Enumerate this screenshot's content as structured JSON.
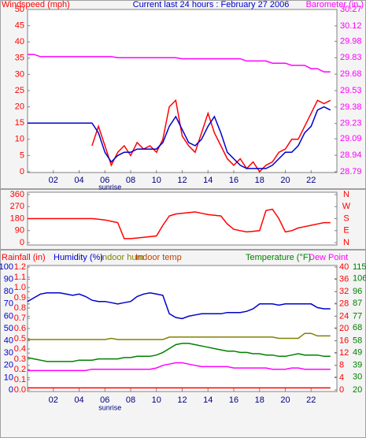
{
  "chart_data": [
    {
      "type": "line",
      "title": "Current last 24 hours : February 27 2006",
      "ylabel": "Windspeed (mph)",
      "y2label": "Barometer (in.)",
      "x": [
        0,
        0.5,
        1,
        1.5,
        2,
        2.5,
        3,
        3.5,
        4,
        4.5,
        5,
        5.5,
        6,
        6.5,
        7,
        7.5,
        8,
        8.5,
        9,
        9.5,
        10,
        10.5,
        11,
        11.5,
        12,
        12.5,
        13,
        13.5,
        14,
        14.5,
        15,
        15.5,
        16,
        16.5,
        17,
        17.5,
        18,
        18.5,
        19,
        19.5,
        20,
        20.5,
        21,
        21.5,
        22,
        22.5,
        23,
        23.5
      ],
      "xlim": [
        0,
        24
      ],
      "xticks": [
        {
          "value": 2,
          "label": "02"
        },
        {
          "value": 4,
          "label": "04"
        },
        {
          "value": 6,
          "label": "06"
        },
        {
          "value": 8,
          "label": "08"
        },
        {
          "value": 10,
          "label": "10"
        },
        {
          "value": 12,
          "label": "12"
        },
        {
          "value": 14,
          "label": "14"
        },
        {
          "value": 16,
          "label": "16"
        },
        {
          "value": 18,
          "label": "18"
        },
        {
          "value": 20,
          "label": "20"
        },
        {
          "value": 22,
          "label": "22"
        }
      ],
      "annotations": [
        {
          "text": "sunrise",
          "x": 6.4
        }
      ],
      "ylim": [
        0,
        50
      ],
      "yticks": [
        0,
        5,
        10,
        15,
        20,
        25,
        30,
        35,
        40,
        45,
        50
      ],
      "y2lim": [
        28.79,
        30.27
      ],
      "y2ticks": [
        28.79,
        28.94,
        29.09,
        29.23,
        29.38,
        29.53,
        29.68,
        29.83,
        29.98,
        30.12,
        30.27
      ],
      "series": [
        {
          "color": "#ff0000",
          "values": [
            null,
            null,
            null,
            null,
            null,
            null,
            null,
            null,
            null,
            null,
            8,
            14,
            8,
            2,
            6,
            8,
            5,
            9,
            7,
            8,
            6,
            10,
            20,
            22,
            11,
            8,
            6,
            12,
            18,
            12,
            8,
            4,
            2,
            4,
            1,
            3,
            0,
            2,
            3,
            6,
            7,
            10,
            10,
            14,
            18,
            22,
            21,
            22
          ]
        },
        {
          "color": "#0000cc",
          "values": [
            15,
            15,
            15,
            15,
            15,
            15,
            15,
            15,
            15,
            15,
            15,
            12,
            6,
            3,
            5,
            6,
            6,
            7,
            7,
            7,
            7,
            9,
            14,
            17,
            13,
            9,
            8,
            10,
            14,
            17,
            12,
            6,
            4,
            2,
            1,
            1,
            1,
            1,
            2,
            4,
            6,
            6,
            8,
            12,
            14,
            19,
            20,
            19
          ]
        },
        {
          "color": "#ff00ff",
          "axis": "y2",
          "values": [
            29.86,
            29.86,
            29.84,
            29.84,
            29.84,
            29.84,
            29.84,
            29.84,
            29.84,
            29.84,
            29.84,
            29.84,
            29.84,
            29.84,
            29.83,
            29.83,
            29.83,
            29.83,
            29.83,
            29.83,
            29.83,
            29.83,
            29.83,
            29.83,
            29.82,
            29.82,
            29.82,
            29.82,
            29.82,
            29.82,
            29.82,
            29.82,
            29.82,
            29.82,
            29.8,
            29.8,
            29.8,
            29.8,
            29.78,
            29.78,
            29.78,
            29.76,
            29.76,
            29.76,
            29.73,
            29.73,
            29.7,
            29.7
          ]
        }
      ]
    },
    {
      "type": "line",
      "x": [
        0,
        0.5,
        1,
        1.5,
        2,
        2.5,
        3,
        3.5,
        4,
        4.5,
        5,
        5.5,
        6,
        6.5,
        7,
        7.5,
        8,
        8.5,
        9,
        9.5,
        10,
        10.5,
        11,
        11.5,
        12,
        12.5,
        13,
        13.5,
        14,
        14.5,
        15,
        15.5,
        16,
        16.5,
        17,
        17.5,
        18,
        18.5,
        19,
        19.5,
        20,
        20.5,
        21,
        21.5,
        22,
        22.5,
        23,
        23.5
      ],
      "xlim": [
        0,
        24
      ],
      "ylim": [
        0,
        360
      ],
      "yticks": [
        0,
        90,
        180,
        270,
        360
      ],
      "y2lim": [
        0,
        360
      ],
      "y2ticks": [
        {
          "value": 360,
          "label": "N"
        },
        {
          "value": 270,
          "label": "W"
        },
        {
          "value": 180,
          "label": "S"
        },
        {
          "value": 90,
          "label": "E"
        },
        {
          "value": 0,
          "label": "N"
        }
      ],
      "series": [
        {
          "color": "#ff0000",
          "values": [
            180,
            180,
            180,
            180,
            180,
            180,
            180,
            180,
            180,
            180,
            180,
            175,
            170,
            160,
            150,
            30,
            30,
            35,
            40,
            45,
            50,
            130,
            200,
            215,
            220,
            225,
            230,
            220,
            210,
            205,
            200,
            140,
            100,
            90,
            80,
            85,
            90,
            240,
            250,
            180,
            80,
            90,
            110,
            120,
            130,
            140,
            150,
            150
          ]
        }
      ]
    },
    {
      "type": "line",
      "header": [
        {
          "text": "Rainfall (in)",
          "color": "#ff0000"
        },
        {
          "text": "Humidity (%)",
          "color": "#0000cc"
        },
        {
          "text": "Indoor hum",
          "color": "#808000"
        },
        {
          "text": "Indoor temp",
          "color": "#c04000"
        },
        {
          "text": "Temperature (°F)",
          "color": "#008000"
        },
        {
          "text": "Dew Point",
          "color": "#ff00ff"
        }
      ],
      "x": [
        0,
        0.5,
        1,
        1.5,
        2,
        2.5,
        3,
        3.5,
        4,
        4.5,
        5,
        5.5,
        6,
        6.5,
        7,
        7.5,
        8,
        8.5,
        9,
        9.5,
        10,
        10.5,
        11,
        11.5,
        12,
        12.5,
        13,
        13.5,
        14,
        14.5,
        15,
        15.5,
        16,
        16.5,
        17,
        17.5,
        18,
        18.5,
        19,
        19.5,
        20,
        20.5,
        21,
        21.5,
        22,
        22.5,
        23,
        23.5
      ],
      "xlim": [
        0,
        24
      ],
      "xticks": [
        {
          "value": 2,
          "label": "02"
        },
        {
          "value": 4,
          "label": "04"
        },
        {
          "value": 6,
          "label": "06"
        },
        {
          "value": 8,
          "label": "08"
        },
        {
          "value": 10,
          "label": "10"
        },
        {
          "value": 12,
          "label": "12"
        },
        {
          "value": 14,
          "label": "14"
        },
        {
          "value": 16,
          "label": "16"
        },
        {
          "value": 18,
          "label": "18"
        },
        {
          "value": 20,
          "label": "20"
        },
        {
          "value": 22,
          "label": "22"
        }
      ],
      "annotations": [
        {
          "text": "sunrise",
          "x": 6.4
        }
      ],
      "ylim": [
        0,
        100
      ],
      "yticks": [
        0,
        10,
        20,
        30,
        40,
        50,
        60,
        70,
        80,
        90,
        100
      ],
      "y2lim": [
        0,
        1.2
      ],
      "y2ticks": [
        {
          "value": 0,
          "label": "0.0"
        },
        0.1,
        0.2,
        0.3,
        0.4,
        0.5,
        0.6,
        0.7,
        0.8,
        0.9,
        {
          "value": 1,
          "label": "1.0"
        },
        1.1,
        1.2
      ],
      "y3lim": [
        0,
        40
      ],
      "y3ticks": [
        0,
        4,
        8,
        12,
        16,
        20,
        24,
        28,
        32,
        36,
        40
      ],
      "y4lim": [
        20,
        115
      ],
      "y4ticks": [
        20,
        30,
        39,
        49,
        58,
        68,
        77,
        87,
        96,
        106,
        115
      ],
      "series": [
        {
          "color": "#ff0000",
          "axis": "y2",
          "values": [
            0.02,
            0.02,
            0.02,
            0.02,
            0.02,
            0.02,
            0.02,
            0.02,
            0.02,
            0.02,
            0.02,
            0.02,
            0.02,
            0.02,
            0.02,
            0.02,
            0.02,
            0.02,
            0.02,
            0.02,
            0.02,
            0.02,
            0.02,
            0.02,
            0.02,
            0.02,
            0.02,
            0.02,
            0.02,
            0.02,
            0.02,
            0.02,
            0.02,
            0.02,
            0.02,
            0.02,
            0.02,
            0.02,
            0.02,
            0.02,
            0.02,
            0.02,
            0.02,
            0.02,
            0.02,
            0.02,
            0.02,
            0.02
          ]
        },
        {
          "color": "#808000",
          "values": [
            41,
            41,
            41,
            41,
            41,
            41,
            41,
            41,
            41,
            41,
            41,
            41,
            41,
            42,
            41,
            41,
            41,
            41,
            41,
            41,
            41,
            41,
            43,
            43,
            43,
            43,
            43,
            43,
            43,
            43,
            43,
            43,
            43,
            43,
            43,
            43,
            43,
            43,
            43,
            42,
            42,
            42,
            42,
            46,
            46,
            44,
            44,
            44
          ]
        },
        {
          "color": "#008000",
          "axis": "y4",
          "values": [
            45,
            44,
            43,
            42,
            42,
            42,
            42,
            42,
            43,
            43,
            43,
            44,
            44,
            44,
            44,
            45,
            45,
            46,
            46,
            46,
            47,
            49,
            52,
            55,
            56,
            56,
            55,
            54,
            53,
            52,
            51,
            50,
            50,
            49,
            49,
            48,
            48,
            47,
            47,
            46,
            46,
            47,
            48,
            47,
            47,
            47,
            46,
            46
          ]
        },
        {
          "color": "#ff00ff",
          "axis": "y4",
          "values": [
            35,
            35,
            35,
            35,
            35,
            35,
            35,
            35,
            35,
            35,
            36,
            36,
            36,
            36,
            36,
            36,
            36,
            36,
            36,
            36,
            37,
            39,
            40,
            41,
            41,
            40,
            39,
            38,
            38,
            38,
            38,
            38,
            37,
            37,
            37,
            37,
            37,
            37,
            36,
            36,
            36,
            37,
            37,
            36,
            36,
            36,
            36,
            36
          ]
        },
        {
          "color": "#0000cc",
          "values": [
            72,
            75,
            78,
            79,
            79,
            79,
            78,
            77,
            78,
            76,
            73,
            72,
            72,
            71,
            70,
            71,
            72,
            76,
            78,
            79,
            78,
            77,
            62,
            59,
            58,
            60,
            61,
            62,
            62,
            62,
            62,
            63,
            63,
            63,
            64,
            66,
            70,
            70,
            70,
            69,
            70,
            70,
            70,
            70,
            70,
            67,
            66,
            66
          ]
        }
      ]
    }
  ]
}
